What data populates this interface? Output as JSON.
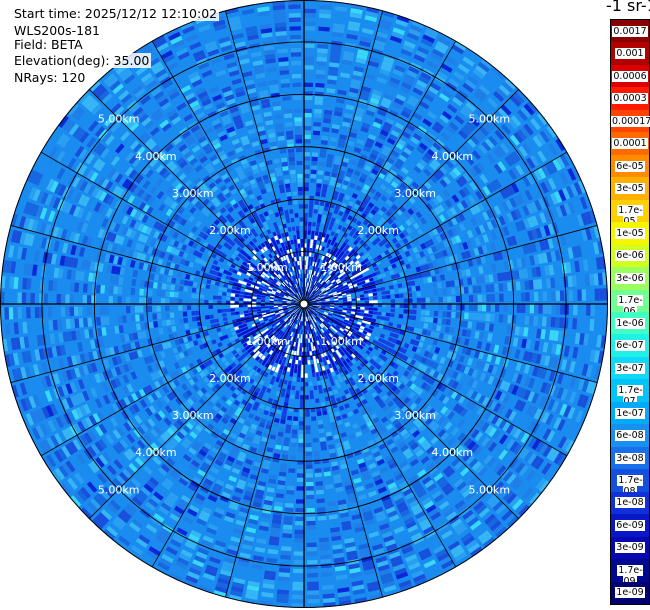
{
  "info": {
    "start_time": "Start time: 2025/12/12 12:10:02",
    "instrument": "WLS200s-181",
    "field": "Field: BETA",
    "elevation": "Elevation(deg): 35.00",
    "nrays": "NRays: 120"
  },
  "colorbar": {
    "title": "-1 sr-1",
    "labels": [
      "0.0017",
      "0.001",
      "0.0006",
      "0.0003",
      "0.00017",
      "0.0001",
      "6e-05",
      "3e-05",
      "1.7e-05",
      "1e-05",
      "6e-06",
      "3e-06",
      "1.7e-06",
      "1e-06",
      "6e-07",
      "3e-07",
      "1.7e-07",
      "1e-07",
      "6e-08",
      "3e-08",
      "1.7e-08",
      "1e-08",
      "6e-09",
      "3e-09",
      "1.7e-09",
      "1e-09"
    ],
    "colors": [
      "#8a0000",
      "#b00000",
      "#d80000",
      "#ff1a00",
      "#ff4500",
      "#ff6a00",
      "#ff8c00",
      "#ffb000",
      "#ffd000",
      "#f5f500",
      "#d0ff20",
      "#9cff60",
      "#70ff90",
      "#40ffc0",
      "#20f0e8",
      "#10d8f8",
      "#00c4f8",
      "#00aaf8",
      "#1890f0",
      "#1870e8",
      "#1450e0",
      "#1030d8",
      "#0818c8",
      "#0808b0",
      "#000890",
      "#000070"
    ]
  },
  "chart_data": {
    "type": "ppi",
    "title": "",
    "field": "BETA",
    "elevation_deg": 35.0,
    "nrays": 120,
    "range_rings_km": [
      1,
      2,
      3,
      4,
      5
    ],
    "ring_labels": [
      "1.00km",
      "2.00km",
      "3.00km",
      "4.00km",
      "5.00km"
    ],
    "max_range_km": 5.8,
    "value_scale": "log",
    "value_range": [
      1e-09,
      0.0017
    ],
    "dominant_values": [
      "3e-08",
      "6e-08"
    ],
    "near_range_values": [
      "1e-08",
      "6e-09"
    ]
  }
}
